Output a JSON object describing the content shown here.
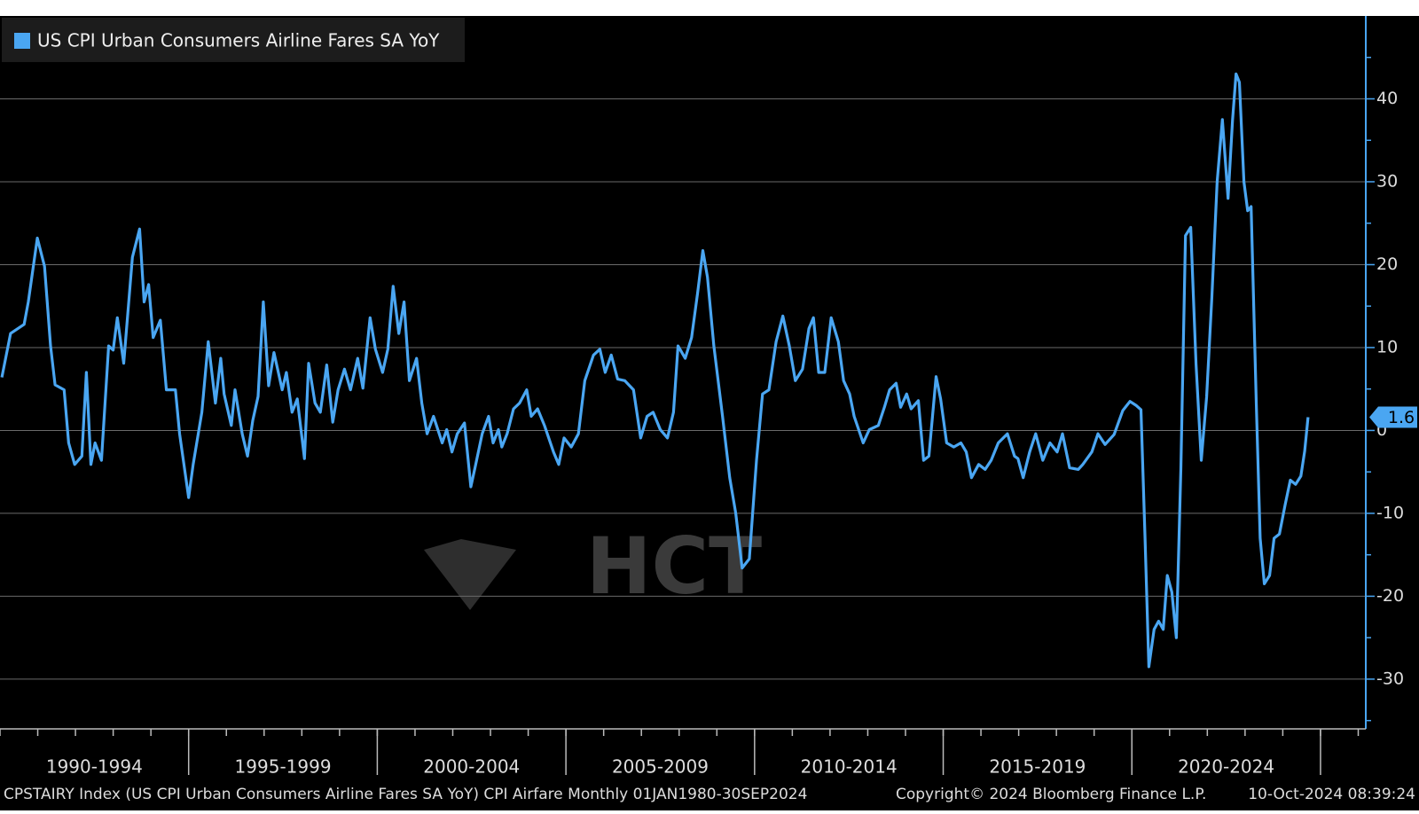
{
  "chart_data": {
    "type": "line",
    "legend": "top-left",
    "grid": true,
    "watermark": "HCT",
    "source": "CPSTAIRY Index (US CPI Urban Consumers Airline Fares SA YoY) CPI Airfare  Monthly 01JAN1980-30SEP2024",
    "copyright": "Copyright© 2024 Bloomberg Finance L.P.",
    "timestamp": "10-Oct-2024 08:39:24",
    "xlim": [
      1990,
      2026.2
    ],
    "xticks": [
      {
        "value": 1992.5,
        "label": "1990-1994"
      },
      {
        "value": 1997.5,
        "label": "1995-1999"
      },
      {
        "value": 2002.5,
        "label": "2000-2004"
      },
      {
        "value": 2007.5,
        "label": "2005-2009"
      },
      {
        "value": 2012.5,
        "label": "2010-2014"
      },
      {
        "value": 2017.5,
        "label": "2015-2019"
      },
      {
        "value": 2022.5,
        "label": "2020-2024"
      }
    ],
    "x_separators": [
      1995,
      2000,
      2005,
      2010,
      2015,
      2020,
      2025
    ],
    "ylim": [
      -36,
      50
    ],
    "yticks": [
      -30,
      -20,
      -10,
      0,
      10,
      20,
      30,
      40
    ],
    "x": [
      1990.05,
      1990.28,
      1990.64,
      1990.75,
      1990.99,
      1991.18,
      1991.34,
      1991.46,
      1991.7,
      1991.82,
      1991.98,
      1992.17,
      1992.29,
      1992.41,
      1992.52,
      1992.69,
      1992.88,
      1993.0,
      1993.11,
      1993.28,
      1993.51,
      1993.7,
      1993.82,
      1993.94,
      1994.06,
      1994.25,
      1994.41,
      1994.65,
      1994.76,
      1995.0,
      1995.12,
      1995.35,
      1995.52,
      1995.71,
      1995.85,
      1995.94,
      1996.13,
      1996.23,
      1996.42,
      1996.56,
      1996.7,
      1996.84,
      1996.98,
      1997.12,
      1997.26,
      1997.48,
      1997.59,
      1997.74,
      1997.88,
      1998.07,
      1998.18,
      1998.35,
      1998.49,
      1998.66,
      1998.82,
      1998.96,
      1999.13,
      1999.29,
      1999.48,
      1999.62,
      1999.81,
      1999.95,
      2000.14,
      2000.28,
      2000.42,
      2000.57,
      2000.71,
      2000.85,
      2001.04,
      2001.18,
      2001.32,
      2001.49,
      2001.72,
      2001.84,
      2001.98,
      2002.12,
      2002.31,
      2002.48,
      2002.59,
      2002.78,
      2002.95,
      2003.07,
      2003.21,
      2003.3,
      2003.44,
      2003.61,
      2003.77,
      2003.96,
      2004.08,
      2004.25,
      2004.43,
      2004.67,
      2004.81,
      2004.95,
      2005.14,
      2005.33,
      2005.5,
      2005.73,
      2005.9,
      2006.04,
      2006.2,
      2006.37,
      2006.56,
      2006.79,
      2006.98,
      2007.15,
      2007.31,
      2007.5,
      2007.69,
      2007.85,
      2007.97,
      2008.16,
      2008.33,
      2008.49,
      2008.63,
      2008.75,
      2008.92,
      2009.15,
      2009.34,
      2009.5,
      2009.67,
      2009.86,
      2010.05,
      2010.21,
      2010.38,
      2010.57,
      2010.75,
      2010.92,
      2011.08,
      2011.27,
      2011.44,
      2011.56,
      2011.7,
      2011.86,
      2012.03,
      2012.22,
      2012.36,
      2012.52,
      2012.64,
      2012.88,
      2013.04,
      2013.28,
      2013.44,
      2013.58,
      2013.75,
      2013.87,
      2014.03,
      2014.15,
      2014.34,
      2014.48,
      2014.62,
      2014.81,
      2014.93,
      2015.09,
      2015.28,
      2015.47,
      2015.61,
      2015.75,
      2015.94,
      2016.11,
      2016.27,
      2016.46,
      2016.7,
      2016.89,
      2016.98,
      2017.12,
      2017.29,
      2017.45,
      2017.64,
      2017.83,
      2018.02,
      2018.16,
      2018.35,
      2018.58,
      2018.7,
      2018.94,
      2019.1,
      2019.29,
      2019.53,
      2019.76,
      2019.95,
      2020.12,
      2020.24,
      2020.35,
      2020.45,
      2020.59,
      2020.71,
      2020.83,
      2020.94,
      2021.06,
      2021.18,
      2021.3,
      2021.42,
      2021.56,
      2021.7,
      2021.84,
      2021.98,
      2022.12,
      2022.26,
      2022.4,
      2022.55,
      2022.67,
      2022.76,
      2022.85,
      2022.97,
      2023.07,
      2023.16,
      2023.3,
      2023.4,
      2023.51,
      2023.65,
      2023.77,
      2023.91,
      2024.06,
      2024.2,
      2024.34,
      2024.48,
      2024.58,
      2024.67
    ],
    "series": [
      {
        "name": "US CPI Urban Consumers Airline Fares SA YoY",
        "color": "#4aa6f2",
        "values": [
          6.4,
          11.7,
          12.8,
          15.5,
          23.2,
          19.8,
          10.2,
          5.5,
          4.9,
          -1.5,
          -4.1,
          -3.1,
          7.0,
          -4.1,
          -1.5,
          -3.6,
          10.2,
          9.7,
          13.6,
          8.1,
          20.9,
          24.3,
          15.5,
          17.6,
          11.2,
          13.3,
          4.9,
          4.9,
          -0.4,
          -8.1,
          -4.1,
          2.2,
          10.7,
          3.3,
          8.7,
          4.4,
          0.6,
          4.9,
          -0.4,
          -3.1,
          1.2,
          4.1,
          15.5,
          5.4,
          9.4,
          4.9,
          7.0,
          2.2,
          3.8,
          -3.4,
          8.1,
          3.3,
          2.2,
          7.9,
          1.0,
          4.9,
          7.4,
          4.9,
          8.7,
          5.1,
          13.6,
          9.8,
          7.0,
          9.8,
          17.4,
          11.7,
          15.5,
          6.0,
          8.7,
          3.3,
          -0.4,
          1.7,
          -1.5,
          0.1,
          -2.6,
          -0.4,
          0.9,
          -6.8,
          -4.5,
          -0.4,
          1.7,
          -1.5,
          0.1,
          -2.0,
          -0.4,
          2.6,
          3.3,
          4.9,
          1.7,
          2.6,
          0.6,
          -2.6,
          -4.1,
          -0.9,
          -2.0,
          -0.4,
          6.0,
          9.1,
          9.8,
          7.0,
          9.1,
          6.2,
          6.0,
          4.9,
          -0.9,
          1.7,
          2.2,
          0.1,
          -0.9,
          2.2,
          10.2,
          8.7,
          11.2,
          16.6,
          21.7,
          18.5,
          10.2,
          1.7,
          -5.7,
          -10.0,
          -16.6,
          -15.5,
          -3.6,
          4.4,
          4.9,
          10.7,
          13.8,
          10.2,
          6.0,
          7.4,
          12.3,
          13.6,
          7.0,
          7.0,
          13.6,
          10.7,
          6.0,
          4.4,
          1.7,
          -1.5,
          0.1,
          0.6,
          2.8,
          4.9,
          5.7,
          2.8,
          4.4,
          2.6,
          3.6,
          -3.6,
          -3.1,
          6.5,
          3.8,
          -1.5,
          -2.0,
          -1.5,
          -2.6,
          -5.7,
          -4.1,
          -4.7,
          -3.6,
          -1.5,
          -0.4,
          -3.1,
          -3.4,
          -5.7,
          -2.6,
          -0.4,
          -3.6,
          -1.5,
          -2.6,
          -0.4,
          -4.5,
          -4.7,
          -4.1,
          -2.6,
          -0.4,
          -1.7,
          -0.5,
          2.4,
          3.5,
          3.0,
          2.5,
          -13.0,
          -28.5,
          -24.0,
          -23.0,
          -24.0,
          -17.5,
          -19.5,
          -25.0,
          -4.6,
          23.5,
          24.5,
          8.0,
          -3.6,
          4.0,
          16.0,
          30.0,
          37.5,
          28.0,
          37.5,
          43.0,
          42.0,
          30.0,
          26.5,
          27.0,
          3.0,
          -13.0,
          -18.5,
          -17.5,
          -13.0,
          -12.5,
          -9.0,
          -6.0,
          -6.5,
          -5.5,
          -2.5,
          1.6
        ]
      }
    ]
  }
}
